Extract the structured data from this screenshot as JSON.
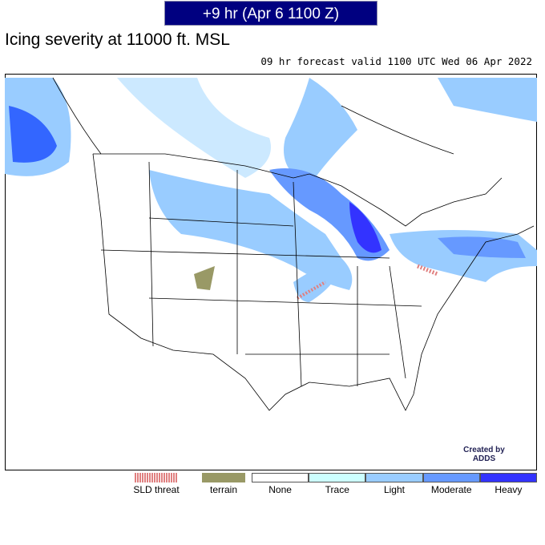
{
  "header": {
    "time": "+9 hr (Apr 6 1100 Z)",
    "title": "Icing severity at 11000 ft. MSL",
    "subtitle": "09 hr forecast valid 1100 UTC Wed 06 Apr 2022"
  },
  "legend": {
    "sld_threat": "SLD threat",
    "terrain": "terrain",
    "severity": [
      {
        "name": "None",
        "color": "#ffffff"
      },
      {
        "name": "Trace",
        "color": "#ccffff"
      },
      {
        "name": "Light",
        "color": "#99ccff"
      },
      {
        "name": "Moderate",
        "color": "#6699ff"
      },
      {
        "name": "Heavy",
        "color": "#3333ff"
      }
    ]
  },
  "credit": "Created by ADDS"
}
